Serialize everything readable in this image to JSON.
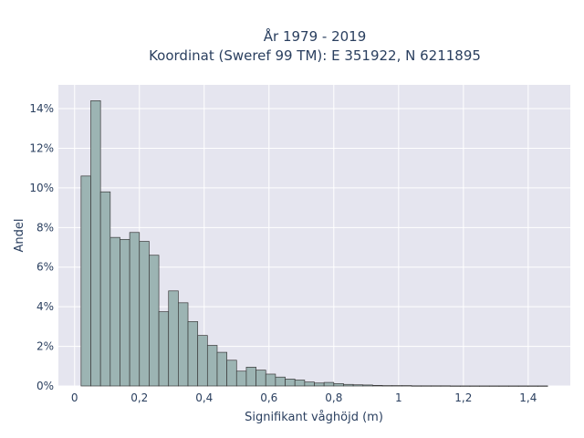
{
  "chart_data": {
    "type": "bar",
    "title": "År 1979 - 2019",
    "subtitle": "Koordinat (Sweref 99 TM): E 351922, N 6211895",
    "xlabel": "Signifikant våghöjd (m)",
    "ylabel": "Andel",
    "xlim": [
      -0.05,
      1.53
    ],
    "ylim": [
      0,
      15.2
    ],
    "bin_width": 0.03,
    "bin_start": 0.02,
    "x_ticks": [
      0,
      0.2,
      0.4,
      0.6,
      0.8,
      1.0,
      1.2,
      1.4
    ],
    "x_tick_labels": [
      "0",
      "0,2",
      "0,4",
      "0,6",
      "0,8",
      "1",
      "1,2",
      "1,4"
    ],
    "y_ticks": [
      0,
      2,
      4,
      6,
      8,
      10,
      12,
      14
    ],
    "y_tick_labels": [
      "0%",
      "2%",
      "4%",
      "6%",
      "8%",
      "10%",
      "12%",
      "14%"
    ],
    "values": [
      10.6,
      14.4,
      9.8,
      7.5,
      7.4,
      7.75,
      7.3,
      6.6,
      3.75,
      4.8,
      4.2,
      3.25,
      2.55,
      2.05,
      1.7,
      1.3,
      0.75,
      0.95,
      0.8,
      0.6,
      0.45,
      0.35,
      0.3,
      0.2,
      0.15,
      0.18,
      0.12,
      0.08,
      0.06,
      0.05,
      0.03,
      0.02,
      0.02,
      0.02,
      0.01,
      0.01,
      0.01,
      0.01,
      0.005,
      0.005,
      0.005,
      0.005,
      0.005,
      0.005,
      0.005,
      0.005,
      0.005,
      0.005
    ],
    "colors": {
      "bar_fill": "#9cb4b3",
      "bar_stroke": "#3a3a3a",
      "plot_bg": "#e5e5ef",
      "grid": "#ffffff",
      "text": "#2a3f5f"
    },
    "grid": true
  }
}
